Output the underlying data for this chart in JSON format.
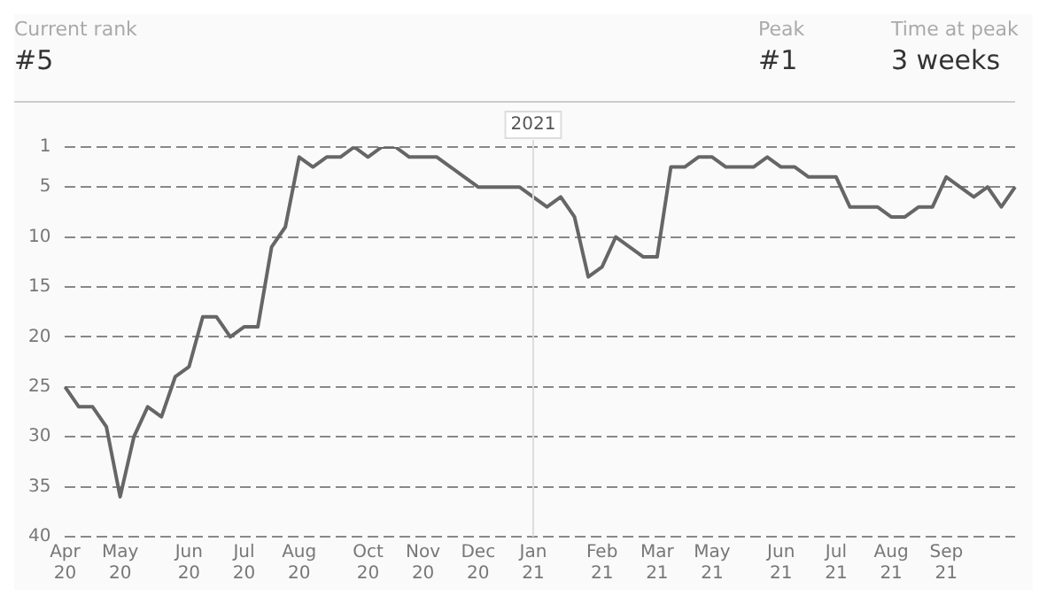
{
  "chart_data": {
    "type": "line",
    "annotations": [
      "Current rank",
      "#5",
      "Peak",
      "#1",
      "Time at peak",
      "3 weeks"
    ],
    "categories": [
      "Apr\n20",
      null,
      null,
      null,
      "May\n20",
      null,
      null,
      null,
      null,
      "Jun\n20",
      null,
      null,
      null,
      "Jul\n20",
      null,
      null,
      null,
      "Aug\n20",
      null,
      null,
      null,
      null,
      "Oct\n20",
      null,
      null,
      null,
      "Nov\n20",
      null,
      null,
      null,
      "Dec\n20",
      null,
      null,
      null,
      "Jan\n21",
      null,
      null,
      null,
      null,
      "Feb\n21",
      null,
      null,
      null,
      "Mar\n21",
      null,
      null,
      null,
      "May\n21",
      null,
      null,
      null,
      null,
      "Jun\n21",
      null,
      null,
      null,
      "Jul\n21",
      null,
      null,
      null,
      "Aug\n21",
      null,
      null,
      null,
      "Sep\n21",
      null,
      null,
      null,
      null,
      null
    ],
    "series": [
      {
        "color": "#666666",
        "values": [
          25,
          27,
          27,
          29,
          36,
          30,
          27,
          28,
          24,
          23,
          18,
          18,
          20,
          19,
          19,
          11,
          9,
          2,
          3,
          2,
          2,
          1,
          2,
          1,
          1,
          2,
          2,
          2,
          3,
          4,
          5,
          5,
          5,
          5,
          6,
          7,
          6,
          8,
          14,
          13,
          10,
          11,
          12,
          12,
          3,
          3,
          2,
          2,
          3,
          3,
          3,
          2,
          3,
          3,
          4,
          4,
          4,
          7,
          7,
          7,
          8,
          8,
          7,
          7,
          4,
          5,
          6,
          5,
          7,
          5
        ]
      }
    ],
    "ylim": [
      40,
      1
    ],
    "yticks": [
      1,
      5,
      10,
      15,
      20,
      25,
      30,
      35,
      40
    ],
    "grid": "y",
    "legend": false,
    "marker": "none",
    "line_style": "solid",
    "ref_lines": [
      {
        "axis": "x",
        "value": "Jan\n21",
        "label": "2021",
        "color": "#dddddd"
      }
    ]
  }
}
